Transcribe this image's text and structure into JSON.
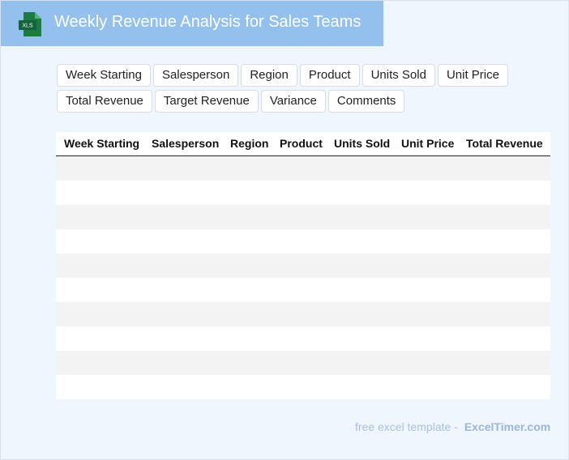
{
  "header": {
    "icon_label": "XLS",
    "title": "Weekly Revenue Analysis for Sales Teams"
  },
  "fields": [
    "Week Starting",
    "Salesperson",
    "Region",
    "Product",
    "Units Sold",
    "Unit Price",
    "Total Revenue",
    "Target Revenue",
    "Variance",
    "Comments"
  ],
  "table": {
    "headers": [
      "Week Starting",
      "Salesperson",
      "Region",
      "Product",
      "Units Sold",
      "Unit Price",
      "Total Revenue"
    ]
  },
  "footer": {
    "text": "free excel template -",
    "brand": "ExcelTimer.com"
  }
}
